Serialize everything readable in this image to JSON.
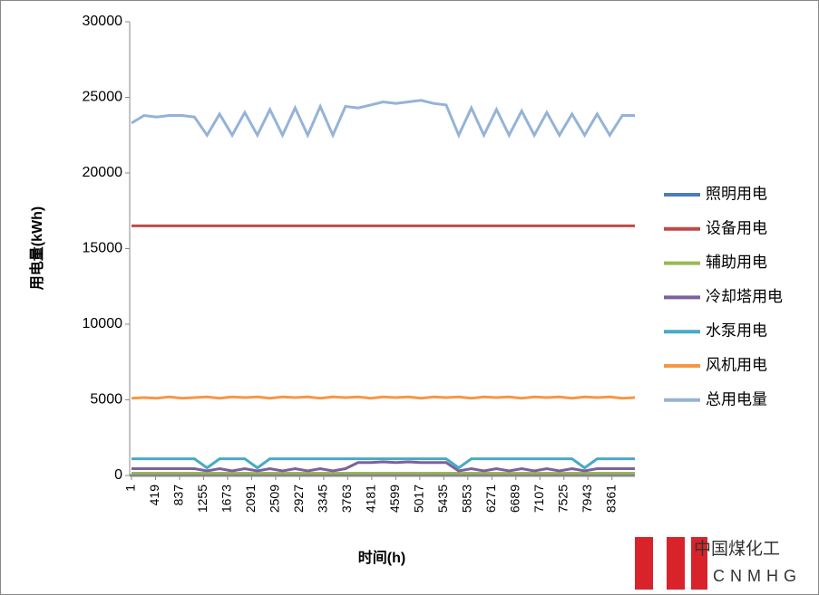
{
  "chart_data": {
    "type": "line",
    "y_label": "用电量(kWh)",
    "x_label": "时间(h)",
    "x": [
      1,
      220,
      439,
      658,
      877,
      1096,
      1315,
      1534,
      1753,
      1972,
      2191,
      2410,
      2629,
      2848,
      3067,
      3286,
      3505,
      3724,
      3943,
      4162,
      4381,
      4600,
      4819,
      5038,
      5257,
      5476,
      5695,
      5914,
      6133,
      6352,
      6571,
      6790,
      7009,
      7228,
      7447,
      7666,
      7885,
      8104,
      8323,
      8542,
      8760
    ],
    "xlim": [
      1,
      8760
    ],
    "xticks": [
      1,
      419,
      837,
      1255,
      1673,
      2091,
      2509,
      2927,
      3345,
      3763,
      4181,
      4599,
      5017,
      5435,
      5853,
      6271,
      6689,
      7107,
      7525,
      7943,
      8361
    ],
    "ylim": [
      0,
      30000
    ],
    "yticks": [
      0,
      5000,
      10000,
      15000,
      20000,
      25000,
      30000
    ],
    "grid": false,
    "legend": "right",
    "series": [
      {
        "name": "照明用电",
        "color": "#4a7ebb",
        "values": [
          50,
          50,
          50,
          50,
          50,
          50,
          50,
          50,
          50,
          50,
          50,
          50,
          50,
          50,
          50,
          50,
          50,
          50,
          50,
          50,
          50,
          50,
          50,
          50,
          50,
          50,
          50,
          50,
          50,
          50,
          50,
          50,
          50,
          50,
          50,
          50,
          50,
          50,
          50,
          50,
          50
        ]
      },
      {
        "name": "设备用电",
        "color": "#be4b48",
        "values": [
          16500,
          16500,
          16500,
          16500,
          16500,
          16500,
          16500,
          16500,
          16500,
          16500,
          16500,
          16500,
          16500,
          16500,
          16500,
          16500,
          16500,
          16500,
          16500,
          16500,
          16500,
          16500,
          16500,
          16500,
          16500,
          16500,
          16500,
          16500,
          16500,
          16500,
          16500,
          16500,
          16500,
          16500,
          16500,
          16500,
          16500,
          16500,
          16500,
          16500,
          16500
        ]
      },
      {
        "name": "辅助用电",
        "color": "#98b954",
        "values": [
          150,
          150,
          150,
          150,
          150,
          150,
          150,
          150,
          150,
          150,
          150,
          150,
          150,
          150,
          150,
          150,
          150,
          150,
          150,
          150,
          150,
          150,
          150,
          150,
          150,
          150,
          150,
          150,
          150,
          150,
          150,
          150,
          150,
          150,
          150,
          150,
          150,
          150,
          150,
          150,
          150
        ]
      },
      {
        "name": "冷却塔用电",
        "color": "#7d60a0",
        "values": [
          450,
          450,
          450,
          450,
          450,
          450,
          300,
          450,
          300,
          450,
          300,
          450,
          300,
          450,
          300,
          450,
          300,
          450,
          850,
          850,
          900,
          850,
          900,
          850,
          850,
          850,
          300,
          450,
          300,
          450,
          300,
          450,
          300,
          450,
          300,
          450,
          300,
          450,
          450,
          450,
          450
        ]
      },
      {
        "name": "水泵用电",
        "color": "#46aac5",
        "values": [
          1100,
          1100,
          1100,
          1100,
          1100,
          1100,
          500,
          1100,
          1100,
          1100,
          500,
          1100,
          1100,
          1100,
          1100,
          1100,
          1100,
          1100,
          1100,
          1100,
          1100,
          1100,
          1100,
          1100,
          1100,
          1100,
          500,
          1100,
          1100,
          1100,
          1100,
          1100,
          1100,
          1100,
          1100,
          1100,
          500,
          1100,
          1100,
          1100,
          1100
        ]
      },
      {
        "name": "风机用电",
        "color": "#f79646",
        "values": [
          5100,
          5150,
          5100,
          5200,
          5100,
          5150,
          5200,
          5100,
          5200,
          5150,
          5200,
          5100,
          5200,
          5150,
          5200,
          5100,
          5200,
          5150,
          5200,
          5100,
          5200,
          5150,
          5200,
          5100,
          5200,
          5150,
          5200,
          5100,
          5200,
          5150,
          5200,
          5100,
          5200,
          5150,
          5200,
          5100,
          5200,
          5150,
          5200,
          5100,
          5150
        ]
      },
      {
        "name": "总用电量",
        "color": "#95b3d7",
        "values": [
          23300,
          23800,
          23700,
          23800,
          23800,
          23700,
          22500,
          23900,
          22500,
          24000,
          22500,
          24200,
          22500,
          24300,
          22500,
          24400,
          22500,
          24400,
          24300,
          24500,
          24700,
          24600,
          24700,
          24800,
          24600,
          24500,
          22500,
          24300,
          22500,
          24200,
          22500,
          24100,
          22500,
          24000,
          22500,
          23900,
          22500,
          23900,
          22500,
          23800,
          23800
        ]
      }
    ]
  },
  "watermark": {
    "name": "中国煤化工",
    "code": "CNMHG"
  }
}
